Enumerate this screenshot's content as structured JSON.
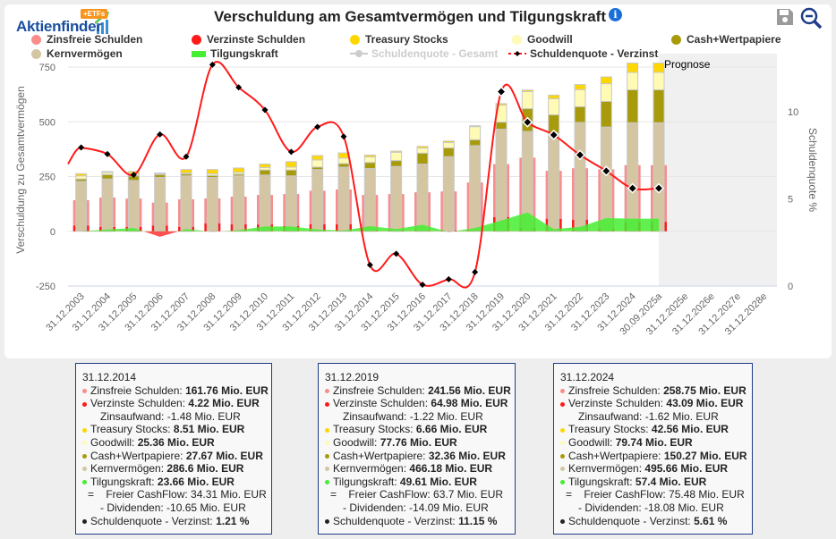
{
  "header": {
    "logo_text": "Aktienfinder",
    "logo_badge": "+ETFs",
    "title": "Verschuldung am Gesamtvermögen und Tilgungskraft",
    "info_icon": "info-icon",
    "save_icon": "save-icon",
    "zoom_icon": "zoom-out-icon"
  },
  "legend": [
    {
      "label": "Zinsfreie Schulden",
      "color": "#f98d8d",
      "marker": "circle",
      "visible": true
    },
    {
      "label": "Verzinste Schulden",
      "color": "#ff1a1a",
      "marker": "circle",
      "visible": true
    },
    {
      "label": "Treasury Stocks",
      "color": "#ffd700",
      "marker": "circle",
      "visible": true
    },
    {
      "label": "Goodwill",
      "color": "#fffbb5",
      "marker": "circle",
      "visible": true
    },
    {
      "label": "Cash+Wertpapiere",
      "color": "#a89b0b",
      "marker": "circle",
      "visible": true
    },
    {
      "label": "Kernvermögen",
      "color": "#d4c6a2",
      "marker": "circle",
      "visible": true
    },
    {
      "label": "Tilgungskraft",
      "color": "#44ee33",
      "marker": "rect",
      "visible": true
    },
    {
      "label": "Schuldenquote - Gesamt",
      "color": "#cccccc",
      "marker": "line-dot",
      "visible": false
    },
    {
      "label": "Schuldenquote - Verzinst",
      "color": "#ff1a1a",
      "marker": "dashed-diamond",
      "visible": true
    }
  ],
  "chart_data": {
    "type": "bar",
    "title": "Verschuldung am Gesamtvermögen und Tilgungskraft",
    "ylabel": "Verschuldung zu Gesamtvermögen",
    "ylabel_right": "Schuldenquote %",
    "ylim": [
      -250,
      750
    ],
    "yticks": [
      -250,
      0,
      250,
      500,
      750
    ],
    "ylim_right": [
      0,
      13
    ],
    "yticks_right": [
      0,
      5,
      10
    ],
    "grid": true,
    "forecast_label": "Prognose",
    "categories": [
      "31.12.2003",
      "31.12.2004",
      "31.12.2005",
      "31.12.2006",
      "31.12.2007",
      "31.12.2008",
      "31.12.2009",
      "31.12.2010",
      "31.12.2011",
      "31.12.2012",
      "31.12.2013",
      "31.12.2014",
      "31.12.2015",
      "31.12.2016",
      "31.12.2017",
      "31.12.2018",
      "31.12.2019",
      "31.12.2020",
      "31.12.2021",
      "31.12.2022",
      "31.12.2023",
      "31.12.2024",
      "30.09.2025a",
      "31.12.2025e",
      "31.12.2026e",
      "31.12.2027e",
      "31.12.2028e"
    ],
    "forecast_start": "30.09.2025a",
    "series": [
      {
        "name": "Kernvermögen",
        "stack": "assets",
        "color": "#d4c6a2",
        "values": [
          228,
          239,
          232,
          246,
          253,
          246,
          253,
          257,
          253,
          282,
          293,
          286.6,
          296,
          307,
          341,
          391,
          466.18,
          456,
          449,
          497,
          476,
          495.66,
          495.66,
          null,
          null,
          null,
          null
        ]
      },
      {
        "name": "Cash+Wertpapiere",
        "stack": "assets",
        "color": "#a89b0b",
        "values": [
          11,
          20,
          21,
          13,
          9,
          9,
          8,
          23,
          27,
          11,
          16,
          27.67,
          27,
          50,
          40,
          27,
          32.36,
          104,
          83,
          72,
          117,
          150.27,
          150.27,
          null,
          null,
          null,
          null
        ]
      },
      {
        "name": "Goodwill",
        "stack": "assets",
        "color": "#fffbb5",
        "values": [
          14,
          10,
          10,
          4,
          4,
          8,
          8,
          11,
          13,
          33,
          25,
          25.36,
          38,
          23,
          24,
          60,
          77.76,
          78,
          74,
          78,
          81,
          79.74,
          79.74,
          null,
          null,
          null,
          null
        ]
      },
      {
        "name": "Treasury Stocks",
        "stack": "assets",
        "color": "#ffd700",
        "values": [
          10,
          4,
          10,
          3,
          16,
          19,
          20,
          16,
          25,
          20,
          24,
          8.51,
          5,
          8,
          7,
          4,
          6.66,
          7,
          16,
          23,
          31,
          42.56,
          42.56,
          null,
          null,
          null,
          null
        ]
      },
      {
        "name": "Verzinste Schulden",
        "stack": "debt",
        "color": "#ff1a1a",
        "values": [
          26,
          20,
          20,
          26,
          20,
          36,
          32,
          31,
          24,
          32,
          32,
          4.22,
          5,
          4,
          4,
          5,
          64.98,
          16,
          57,
          53,
          13,
          43.09,
          43.09,
          null,
          null,
          null,
          null
        ]
      },
      {
        "name": "Zinsfreie Schulden",
        "stack": "debt",
        "color": "#f98d8d",
        "values": [
          116,
          134,
          129,
          105,
          126,
          114,
          126,
          135,
          146,
          153,
          159,
          161.76,
          165,
          174,
          178,
          218,
          241.56,
          320,
          219,
          235,
          270,
          258.75,
          258.75,
          null,
          null,
          null,
          null
        ]
      },
      {
        "name": "Tilgungskraft",
        "type": "area",
        "color": "#44ee33",
        "negative_color": "#ff3333",
        "values": [
          0,
          8,
          15,
          -25,
          10,
          -2,
          5,
          22,
          22,
          8,
          3,
          23.66,
          10,
          30,
          -3,
          15,
          49.61,
          86,
          10,
          20,
          60,
          57.4,
          57.4,
          null,
          null,
          null,
          null
        ]
      },
      {
        "name": "Schuldenquote - Verzinst",
        "type": "line",
        "axis": "right",
        "color": "#ff1a1a",
        "values": [
          7.95,
          7.57,
          6.38,
          8.7,
          7.42,
          12.7,
          11.4,
          10.1,
          7.7,
          9.13,
          8.58,
          1.21,
          1.85,
          0.08,
          0.39,
          0.8,
          11.15,
          9.4,
          8.67,
          7.52,
          6.6,
          5.61,
          5.61,
          null,
          null,
          null,
          null
        ]
      }
    ]
  },
  "tooltips": [
    {
      "date": "31.12.2014",
      "lines": [
        {
          "kind": "item",
          "color": "#f98d8d",
          "label": "Zinsfreie Schulden: ",
          "value": "161.76 Mio. EUR"
        },
        {
          "kind": "item",
          "color": "#ff1a1a",
          "label": "Verzinste Schulden: ",
          "value": "4.22 Mio. EUR"
        },
        {
          "kind": "sub",
          "label": "Zinsaufwand: -1.48 Mio. EUR"
        },
        {
          "kind": "item",
          "color": "#ffd700",
          "label": "Treasury Stocks: ",
          "value": "8.51 Mio. EUR"
        },
        {
          "kind": "item",
          "color": "#fffbb5",
          "label": "Goodwill: ",
          "value": "25.36 Mio. EUR"
        },
        {
          "kind": "item",
          "color": "#a89b0b",
          "label": "Cash+Wertpapiere: ",
          "value": "27.67 Mio. EUR"
        },
        {
          "kind": "item",
          "color": "#d4c6a2",
          "label": "Kernvermögen: ",
          "value": "286.6 Mio. EUR"
        },
        {
          "kind": "item",
          "color": "#44ee33",
          "label": "Tilgungskraft: ",
          "value": "23.66 Mio. EUR"
        },
        {
          "kind": "eq",
          "label": "=    Freier CashFlow: 34.31 Mio. EUR"
        },
        {
          "kind": "sub",
          "label": "- Dividenden: -10.65 Mio. EUR"
        },
        {
          "kind": "item",
          "color": "#222222",
          "label": "Schuldenquote - Verzinst: ",
          "value": "1.21 %"
        }
      ]
    },
    {
      "date": "31.12.2019",
      "lines": [
        {
          "kind": "item",
          "color": "#f98d8d",
          "label": "Zinsfreie Schulden: ",
          "value": "241.56 Mio. EUR"
        },
        {
          "kind": "item",
          "color": "#ff1a1a",
          "label": "Verzinste Schulden: ",
          "value": "64.98 Mio. EUR"
        },
        {
          "kind": "sub",
          "label": "Zinsaufwand: -1.22 Mio. EUR"
        },
        {
          "kind": "item",
          "color": "#ffd700",
          "label": "Treasury Stocks: ",
          "value": "6.66 Mio. EUR"
        },
        {
          "kind": "item",
          "color": "#fffbb5",
          "label": "Goodwill: ",
          "value": "77.76 Mio. EUR"
        },
        {
          "kind": "item",
          "color": "#a89b0b",
          "label": "Cash+Wertpapiere: ",
          "value": "32.36 Mio. EUR"
        },
        {
          "kind": "item",
          "color": "#d4c6a2",
          "label": "Kernvermögen: ",
          "value": "466.18 Mio. EUR"
        },
        {
          "kind": "item",
          "color": "#44ee33",
          "label": "Tilgungskraft: ",
          "value": "49.61 Mio. EUR"
        },
        {
          "kind": "eq",
          "label": "=    Freier CashFlow: 63.7 Mio. EUR"
        },
        {
          "kind": "sub",
          "label": "- Dividenden: -14.09 Mio. EUR"
        },
        {
          "kind": "item",
          "color": "#222222",
          "label": "Schuldenquote - Verzinst: ",
          "value": "11.15 %"
        }
      ]
    },
    {
      "date": "31.12.2024",
      "lines": [
        {
          "kind": "item",
          "color": "#f98d8d",
          "label": "Zinsfreie Schulden: ",
          "value": "258.75 Mio. EUR"
        },
        {
          "kind": "item",
          "color": "#ff1a1a",
          "label": "Verzinste Schulden: ",
          "value": "43.09 Mio. EUR"
        },
        {
          "kind": "sub",
          "label": "Zinsaufwand: -1.62 Mio. EUR"
        },
        {
          "kind": "item",
          "color": "#ffd700",
          "label": "Treasury Stocks: ",
          "value": "42.56 Mio. EUR"
        },
        {
          "kind": "item",
          "color": "#fffbb5",
          "label": "Goodwill: ",
          "value": "79.74 Mio. EUR"
        },
        {
          "kind": "item",
          "color": "#a89b0b",
          "label": "Cash+Wertpapiere: ",
          "value": "150.27 Mio. EUR"
        },
        {
          "kind": "item",
          "color": "#d4c6a2",
          "label": "Kernvermögen: ",
          "value": "495.66 Mio. EUR"
        },
        {
          "kind": "item",
          "color": "#44ee33",
          "label": "Tilgungskraft: ",
          "value": "57.4 Mio. EUR"
        },
        {
          "kind": "eq",
          "label": "=    Freier CashFlow: 75.48 Mio. EUR"
        },
        {
          "kind": "sub",
          "label": "- Dividenden: -18.08 Mio. EUR"
        },
        {
          "kind": "item",
          "color": "#222222",
          "label": "Schuldenquote - Verzinst: ",
          "value": "5.61 %"
        }
      ]
    }
  ]
}
